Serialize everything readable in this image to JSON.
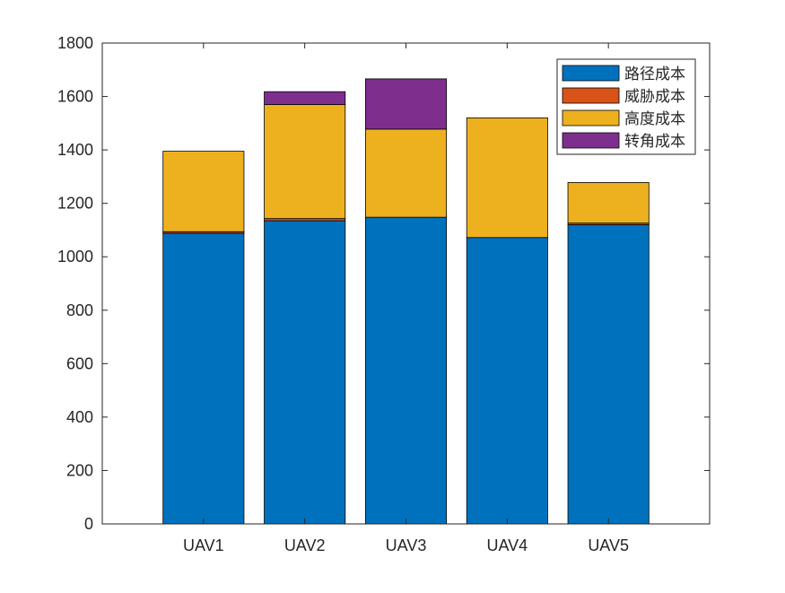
{
  "chart_data": {
    "type": "bar",
    "stacked": true,
    "title": "",
    "xlabel": "",
    "ylabel": "",
    "categories": [
      "UAV1",
      "UAV2",
      "UAV3",
      "UAV4",
      "UAV5"
    ],
    "series": [
      {
        "name": "路径成本",
        "color": "#0072BD",
        "values": [
          1088,
          1135,
          1148,
          1072,
          1120
        ]
      },
      {
        "name": "威胁成本",
        "color": "#D95319",
        "values": [
          6,
          8,
          0,
          0,
          6
        ]
      },
      {
        "name": "高度成本",
        "color": "#EDB120",
        "values": [
          301,
          427,
          330,
          448,
          152
        ]
      },
      {
        "name": "转角成本",
        "color": "#7E2F8E",
        "values": [
          0,
          48,
          188,
          0,
          0
        ]
      }
    ],
    "ylim": [
      0,
      1800
    ],
    "yticks": [
      0,
      200,
      400,
      600,
      800,
      1000,
      1200,
      1400,
      1600,
      1800
    ],
    "xlim": [
      0,
      6
    ],
    "grid": false,
    "legend_position": "top-right"
  }
}
